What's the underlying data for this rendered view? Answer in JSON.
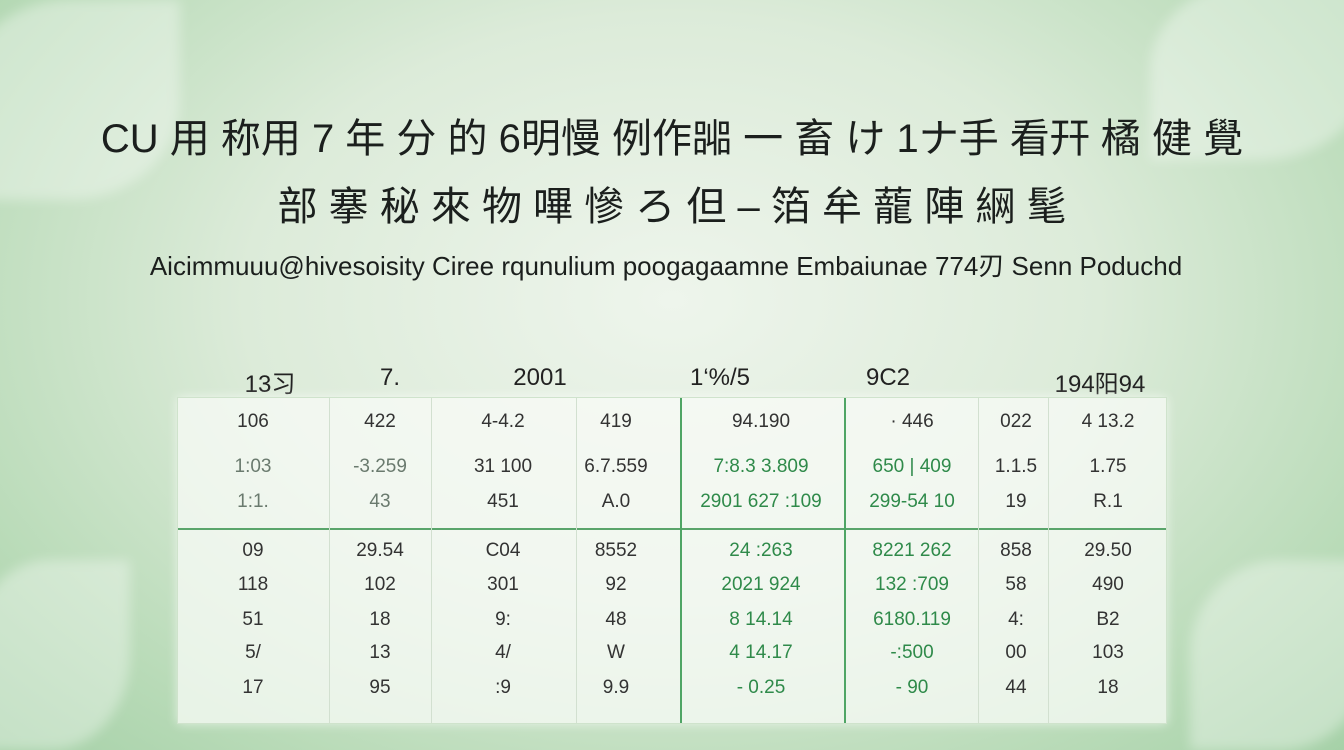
{
  "title": {
    "line1": "СU 用 称用 7 年 分 的 6明慢 例作嘂 一 畜 け 1ナ手 看幵 橘 健 覺",
    "line2": "部 搴 秘 來 物 嗶 慘 ろ 但 – 箔 牟 蘢 陣 䋞 髦",
    "subtitle": "Aicimmuuu@hivesoisity   Ciree rqunulium poogagaamne Embaiunae 774刃  Senn Poduchd"
  },
  "colors": {
    "accent": "#4fa565",
    "background": "#dcebd9",
    "green_text": "#2f8a4a"
  },
  "table": {
    "header_labels": [
      "13习",
      "7.",
      "2001",
      "1‘%/5",
      "9C2",
      "194阳94"
    ],
    "upper_rows": [
      [
        "106",
        "422",
        "4-4.2",
        "419",
        "94.190",
        "· 446",
        "022",
        "4 13.2"
      ],
      [
        "1:03",
        "-3.259",
        "31 100",
        "6.7.559",
        "7:8.3 3.809",
        "650 | 409",
        "1.1.5",
        "1.75"
      ],
      [
        "1:1.",
        "43",
        "451",
        "A.0",
        "2901 627 :109",
        "299-54 10",
        "19",
        "R.1"
      ]
    ],
    "lower_rows": [
      [
        "09",
        "29.54",
        "C04",
        "8552",
        "24 :263",
        "8221 262",
        "858",
        "29.50"
      ],
      [
        "118",
        "102",
        "301",
        "92",
        "2021 924",
        "132 :709",
        "58",
        "490"
      ],
      [
        "51",
        "18",
        "9:",
        "48",
        "8 14.14",
        "6180.119",
        "4:",
        "B2"
      ],
      [
        "5/",
        "13",
        "4/",
        "W",
        "4 14.17",
        "-:500",
        "00",
        "103"
      ],
      [
        "17",
        "95",
        ":9",
        "9.9",
        "- 0.25",
        "- 90",
        "44",
        "18"
      ]
    ]
  }
}
